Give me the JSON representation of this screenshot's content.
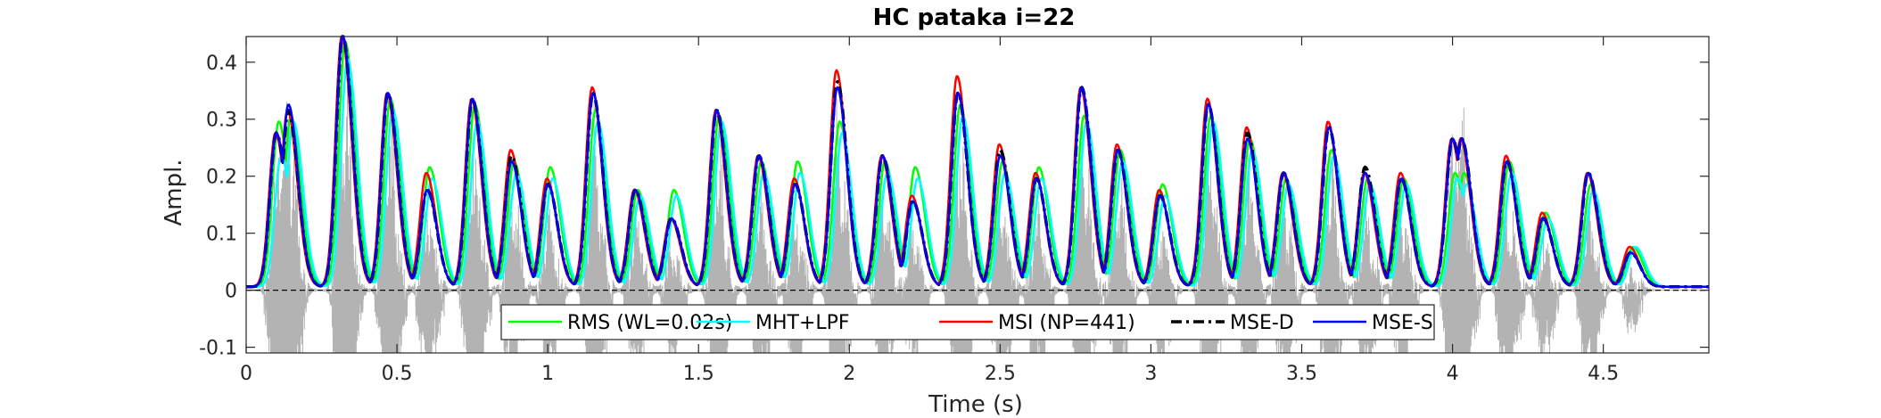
{
  "chart_data": {
    "type": "line",
    "title": "HC pataka i=22",
    "xlabel": "Time (s)",
    "ylabel": "Ampl.",
    "xlim": [
      0,
      4.85
    ],
    "ylim": [
      -0.11,
      0.445
    ],
    "xticks": [
      0,
      0.5,
      1,
      1.5,
      2,
      2.5,
      3,
      3.5,
      4,
      4.5
    ],
    "xtick_labels": [
      "0",
      "0.5",
      "1",
      "1.5",
      "2",
      "2.5",
      "3",
      "3.5",
      "4",
      "4.5"
    ],
    "yticks": [
      -0.1,
      0,
      0.1,
      0.2,
      0.3,
      0.4
    ],
    "ytick_labels": [
      "-0.1",
      "0",
      "0.1",
      "0.2",
      "0.3",
      "0.4"
    ],
    "grid": false,
    "legend_position": "bottom-center",
    "legend_orientation": "horizontal",
    "zero_line_color": "#000000",
    "waveform_color": "#b3b3b3",
    "peak_times": [
      0.1,
      0.14,
      0.32,
      0.47,
      0.6,
      0.75,
      0.88,
      1.0,
      1.15,
      1.29,
      1.41,
      1.56,
      1.7,
      1.82,
      1.96,
      2.11,
      2.21,
      2.36,
      2.5,
      2.62,
      2.77,
      2.89,
      3.03,
      3.19,
      3.32,
      3.44,
      3.59,
      3.71,
      3.83,
      4.0,
      4.03,
      4.18,
      4.3,
      4.45,
      4.59
    ],
    "series": [
      {
        "name": "RMS (WL=0.02s)",
        "color": "#00ff00",
        "dash": "solid",
        "width": 2.5,
        "peaks": [
          0.29,
          0.3,
          0.43,
          0.33,
          0.21,
          0.32,
          0.22,
          0.21,
          0.31,
          0.17,
          0.17,
          0.3,
          0.22,
          0.22,
          0.29,
          0.22,
          0.21,
          0.32,
          0.22,
          0.21,
          0.3,
          0.24,
          0.18,
          0.3,
          0.26,
          0.19,
          0.24,
          0.19,
          0.19,
          0.2,
          0.2,
          0.22,
          0.13,
          0.18,
          0.07
        ]
      },
      {
        "name": "MHT+LPF",
        "color": "#00ffff",
        "dash": "solid",
        "width": 2.5,
        "peaks": [
          0.23,
          0.29,
          0.4,
          0.31,
          0.19,
          0.29,
          0.2,
          0.19,
          0.29,
          0.16,
          0.16,
          0.29,
          0.2,
          0.2,
          0.27,
          0.2,
          0.19,
          0.3,
          0.2,
          0.19,
          0.29,
          0.22,
          0.16,
          0.29,
          0.24,
          0.18,
          0.23,
          0.18,
          0.18,
          0.19,
          0.18,
          0.2,
          0.12,
          0.17,
          0.07
        ]
      },
      {
        "name": "MSI (NP=441)",
        "color": "#ff0000",
        "dash": "solid",
        "width": 2.5,
        "peaks": [
          0.27,
          0.31,
          0.44,
          0.34,
          0.2,
          0.33,
          0.24,
          0.19,
          0.35,
          0.17,
          0.12,
          0.31,
          0.23,
          0.19,
          0.38,
          0.23,
          0.16,
          0.37,
          0.25,
          0.2,
          0.35,
          0.25,
          0.17,
          0.33,
          0.28,
          0.2,
          0.29,
          0.2,
          0.2,
          0.26,
          0.26,
          0.23,
          0.13,
          0.2,
          0.07
        ]
      },
      {
        "name": "MSE-D",
        "color": "#000000",
        "dash": "dashdot",
        "width": 3.5,
        "peaks": [
          0.27,
          0.31,
          0.44,
          0.34,
          0.17,
          0.33,
          0.23,
          0.18,
          0.34,
          0.17,
          0.12,
          0.31,
          0.23,
          0.18,
          0.36,
          0.23,
          0.15,
          0.34,
          0.24,
          0.19,
          0.35,
          0.24,
          0.16,
          0.32,
          0.27,
          0.2,
          0.28,
          0.21,
          0.19,
          0.26,
          0.26,
          0.22,
          0.12,
          0.2,
          0.06
        ]
      },
      {
        "name": "MSE-S",
        "color": "#0000ff",
        "dash": "solid",
        "width": 2.5,
        "peaks": [
          0.27,
          0.32,
          0.44,
          0.34,
          0.17,
          0.33,
          0.22,
          0.18,
          0.34,
          0.17,
          0.12,
          0.31,
          0.23,
          0.18,
          0.35,
          0.23,
          0.15,
          0.34,
          0.23,
          0.19,
          0.35,
          0.24,
          0.16,
          0.32,
          0.26,
          0.2,
          0.28,
          0.2,
          0.19,
          0.26,
          0.26,
          0.22,
          0.12,
          0.2,
          0.06
        ]
      }
    ]
  }
}
